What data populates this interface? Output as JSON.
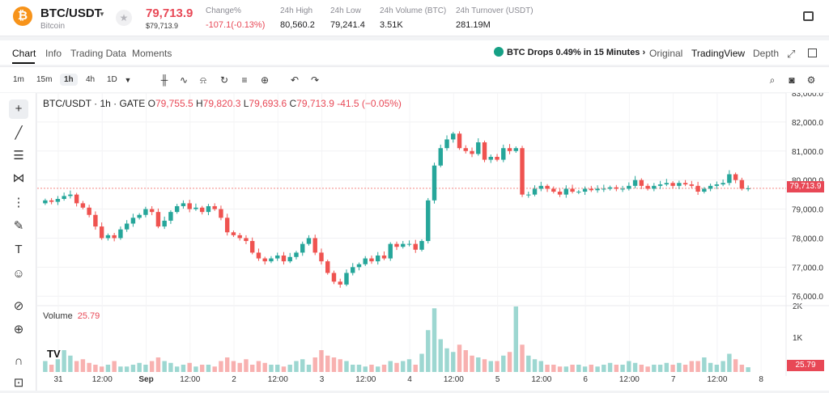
{
  "header": {
    "coin_icon": "bitcoin-icon",
    "pair": "BTC/USDT",
    "pair_name": "Bitcoin",
    "price": "79,713.9",
    "price_usd": "$79,713.9",
    "stats": [
      {
        "label": "Change%",
        "value": "-107.1(-0.13%)",
        "red": true
      },
      {
        "label": "24h High",
        "value": "80,560.2",
        "red": false
      },
      {
        "label": "24h Low",
        "value": "79,241.4",
        "red": false
      },
      {
        "label": "24h Volume (BTC)",
        "value": "3.51K",
        "red": false
      },
      {
        "label": "24h Turnover (USDT)",
        "value": "281.19M",
        "red": false
      }
    ]
  },
  "tabs": {
    "items": [
      "Chart",
      "Info",
      "Trading Data",
      "Moments"
    ],
    "active": "Chart",
    "alert": "BTC Drops 0.49% in 15 Minutes",
    "views": [
      "Original",
      "TradingView",
      "Depth"
    ]
  },
  "toolbar": {
    "timeframes": [
      "1m",
      "15m",
      "1h",
      "4h",
      "1D"
    ],
    "active_timeframe": "1h"
  },
  "chart_header": {
    "title": "BTC/USDT · 1h · GATE",
    "o_label": "O",
    "o": "79,755.5",
    "h_label": "H",
    "h": "79,820.3",
    "l_label": "L",
    "l": "79,693.6",
    "c_label": "C",
    "c": "79,713.9",
    "change": "-41.5 (−0.05%)"
  },
  "volume_header": {
    "label": "Volume",
    "value": "25.79"
  },
  "last_price_label": "79,713.9",
  "last_volume_label": "25.79",
  "colors": {
    "up": "#26a69a",
    "down": "#ef5350",
    "accent": "#e84856"
  },
  "chart_data": {
    "type": "candlestick",
    "title": "BTC/USDT · 1h · GATE",
    "price_axis": {
      "ylim": [
        75700,
        83000
      ],
      "ticks": [
        "83,000.0",
        "82,000.0",
        "81,000.0",
        "80,000.0",
        "79,000.0",
        "78,000.0",
        "77,000.0",
        "76,000.0"
      ]
    },
    "volume_axis": {
      "ticks": [
        "2K",
        "1K"
      ]
    },
    "x_ticks": [
      "31",
      "12:00",
      "Sep",
      "12:00",
      "2",
      "12:00",
      "3",
      "12:00",
      "4",
      "12:00",
      "5",
      "12:00",
      "6",
      "12:00",
      "7",
      "12:00",
      "8"
    ],
    "close": [
      79300,
      79250,
      79350,
      79450,
      79500,
      79200,
      79050,
      78800,
      78400,
      78000,
      78100,
      78000,
      78300,
      78500,
      78700,
      78800,
      79000,
      78900,
      78400,
      78600,
      78900,
      79100,
      79200,
      79000,
      79050,
      78900,
      79100,
      79000,
      78700,
      78200,
      78100,
      78000,
      77900,
      77500,
      77300,
      77200,
      77300,
      77400,
      77200,
      77350,
      77500,
      77800,
      78000,
      77500,
      77200,
      76800,
      76500,
      76400,
      76800,
      77000,
      77100,
      77300,
      77200,
      77400,
      77300,
      77800,
      77700,
      77800,
      77800,
      77600,
      77900,
      79300,
      80500,
      81100,
      81400,
      81600,
      81100,
      81000,
      80900,
      81300,
      80700,
      80800,
      80700,
      81100,
      81000,
      81100,
      79500,
      79500,
      79700,
      79800,
      79700,
      79600,
      79500,
      79700,
      79600,
      79600,
      79700,
      79650,
      79700,
      79700,
      79750,
      79700,
      79700,
      79800,
      80000,
      79800,
      79700,
      79800,
      79850,
      79900,
      79800,
      79900,
      79850,
      79800,
      79600,
      79700,
      79800,
      79850,
      79900,
      80200,
      80000,
      79700,
      79714
    ],
    "volume": [
      60,
      40,
      70,
      120,
      90,
      60,
      70,
      50,
      40,
      30,
      40,
      60,
      30,
      30,
      40,
      50,
      40,
      60,
      80,
      60,
      50,
      30,
      40,
      50,
      30,
      40,
      40,
      30,
      60,
      80,
      60,
      50,
      70,
      40,
      60,
      50,
      40,
      40,
      30,
      40,
      60,
      70,
      40,
      80,
      120,
      90,
      80,
      70,
      60,
      40,
      40,
      30,
      40,
      30,
      40,
      60,
      50,
      60,
      70,
      40,
      100,
      230,
      350,
      180,
      130,
      110,
      150,
      120,
      90,
      80,
      70,
      60,
      60,
      90,
      110,
      360,
      150,
      90,
      70,
      60,
      40,
      40,
      30,
      30,
      40,
      40,
      30,
      40,
      30,
      40,
      50,
      40,
      40,
      60,
      50,
      40,
      30,
      40,
      40,
      50,
      40,
      50,
      40,
      60,
      60,
      80,
      50,
      40,
      60,
      100,
      70,
      40,
      26
    ]
  }
}
